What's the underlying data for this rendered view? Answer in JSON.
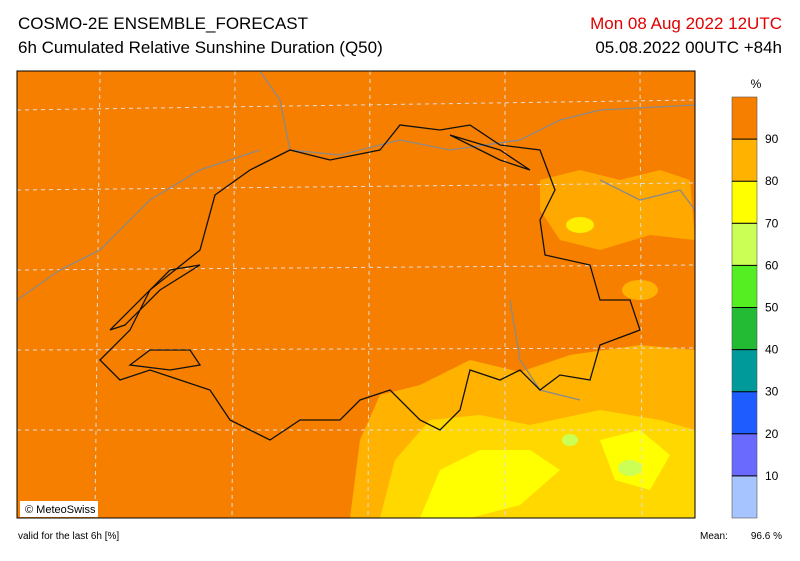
{
  "header": {
    "title": "COSMO-2E ENSEMBLE_FORECAST",
    "subtitle": "6h Cumulated Relative Sunshine Duration (Q50)",
    "valid_time": "Mon 08 Aug 2022 12UTC",
    "run": "05.08.2022 00UTC +84h"
  },
  "map": {
    "credit": "© MeteoSwiss"
  },
  "legend": {
    "unit": "%",
    "ticks": [
      10,
      20,
      30,
      40,
      50,
      60,
      70,
      80,
      90
    ],
    "colors": [
      "#a6c4ff",
      "#6a6aff",
      "#1f5cff",
      "#009a9a",
      "#22bb33",
      "#55ee22",
      "#ccff55",
      "#ffff00",
      "#ffb300",
      "#f77f00"
    ]
  },
  "footer": {
    "note": "valid for the last 6h [%]",
    "mean_label": "Mean:",
    "mean_value": "96.6 %"
  }
}
